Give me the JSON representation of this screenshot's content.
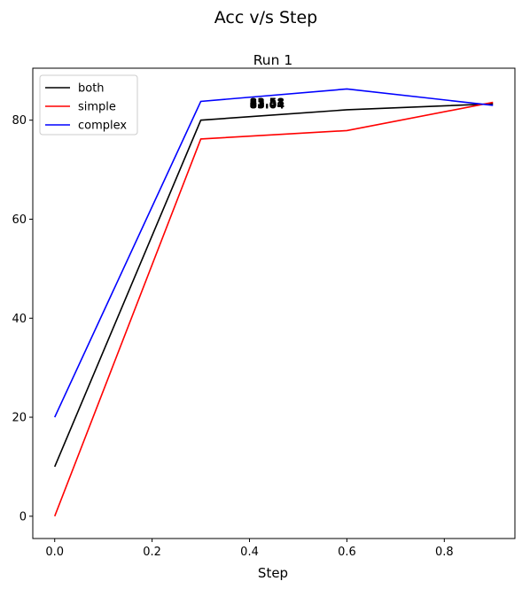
{
  "figure": {
    "suptitle": "Acc v/s Step"
  },
  "chart_data": {
    "type": "line",
    "title": "Run 1",
    "xlabel": "Step",
    "ylabel": "",
    "x": [
      0.0,
      0.3,
      0.6,
      0.9
    ],
    "xlim": [
      -0.045,
      0.945
    ],
    "ylim": [
      -4.5,
      90.5
    ],
    "xticks": [
      0.0,
      0.2,
      0.4,
      0.6,
      0.8
    ],
    "xtick_labels": [
      "0.0",
      "0.2",
      "0.4",
      "0.6",
      "0.8"
    ],
    "yticks": [
      0,
      20,
      40,
      60,
      80
    ],
    "ytick_labels": [
      "0",
      "20",
      "40",
      "60",
      "80"
    ],
    "grid": false,
    "legend_position": "top-left",
    "series": [
      {
        "name": "both",
        "color": "#000000",
        "values": [
          10.0,
          80.0,
          82.1,
          83.3
        ]
      },
      {
        "name": "simple",
        "color": "#ff0000",
        "values": [
          0.0,
          76.2,
          77.9,
          83.6
        ]
      },
      {
        "name": "complex",
        "color": "#0000ff",
        "values": [
          20.0,
          83.8,
          86.3,
          83.0
        ]
      }
    ],
    "annotations": [
      {
        "text": "83.58",
        "x": 0.4,
        "y": 83.58
      },
      {
        "text": "83.31",
        "x": 0.4,
        "y": 83.31
      },
      {
        "text": "83.04",
        "x": 0.4,
        "y": 83.04
      }
    ]
  }
}
